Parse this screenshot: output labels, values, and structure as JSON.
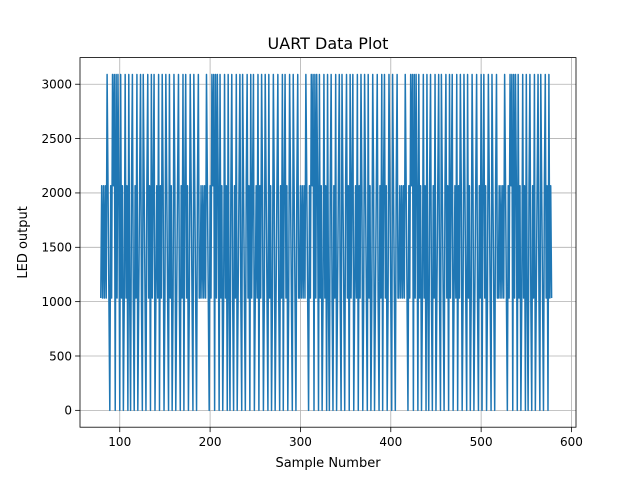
{
  "chart_data": {
    "type": "line",
    "title": "UART Data Plot",
    "xlabel": "Sample Number",
    "ylabel": "LED output",
    "xlim": [
      56,
      605
    ],
    "ylim": [
      -155,
      3245
    ],
    "xticks": [
      100,
      200,
      300,
      400,
      500,
      600
    ],
    "yticks": [
      0,
      500,
      1000,
      1500,
      2000,
      2500,
      3000
    ],
    "xtick_labels": [
      "100",
      "200",
      "300",
      "400",
      "500",
      "600"
    ],
    "ytick_labels": [
      "0",
      "500",
      "1000",
      "1500",
      "2000",
      "2500",
      "3000"
    ],
    "grid": true,
    "legend": "none",
    "series": [
      {
        "color": "#1f77b4",
        "x_start": 79,
        "x_end": 578,
        "levels": [
          0,
          1033,
          2066,
          3090
        ],
        "pattern": [
          1,
          2,
          1,
          2,
          1,
          2,
          1,
          3,
          2,
          1,
          0,
          2,
          1,
          3,
          2,
          3,
          0,
          3,
          1,
          3,
          2,
          0,
          3,
          1,
          2,
          0,
          1,
          3,
          1,
          2,
          0,
          3,
          1,
          0,
          2,
          3,
          1,
          0,
          2,
          1,
          3,
          0,
          1,
          2,
          3,
          1,
          0,
          3,
          2,
          1,
          0,
          2,
          3,
          1,
          2,
          0,
          3,
          1,
          2,
          3,
          0,
          1,
          2,
          1,
          3,
          0,
          2,
          1,
          3,
          2,
          0,
          1,
          3,
          2,
          1,
          0,
          3,
          1,
          2,
          0,
          1,
          3,
          2,
          0,
          1,
          2,
          3,
          1,
          0,
          2,
          1,
          3,
          0,
          2,
          3,
          1,
          2,
          0,
          1,
          3,
          2,
          1,
          0,
          3,
          2,
          1,
          0,
          2,
          3,
          1
        ],
        "repeat_every": 110,
        "final_value": 1033
      }
    ]
  }
}
